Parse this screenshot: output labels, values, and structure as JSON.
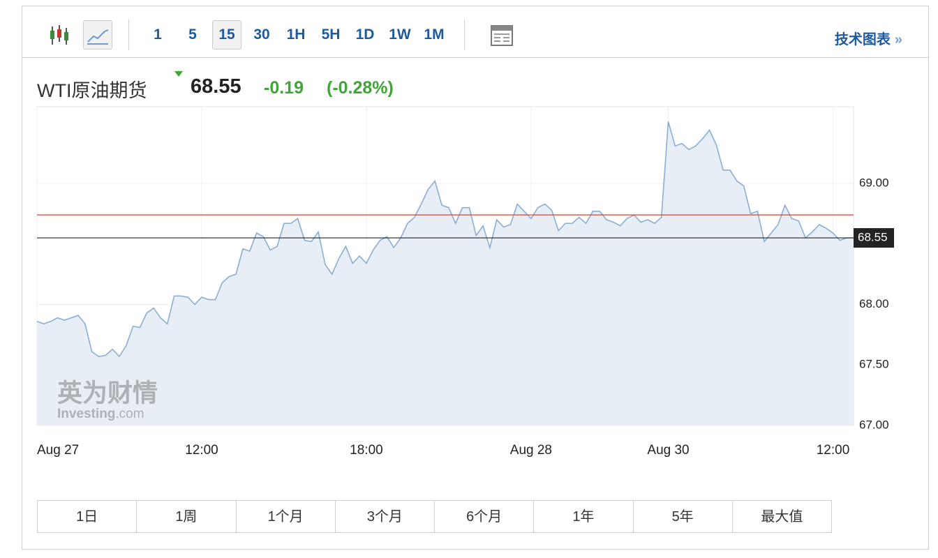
{
  "toolbar": {
    "intervals": [
      "1",
      "5",
      "15",
      "30",
      "1H",
      "5H",
      "1D",
      "1W",
      "1M"
    ],
    "selected_interval": 2,
    "link": "技术图表"
  },
  "quote": {
    "name": "WTI原油期货",
    "price": "68.55",
    "change": "-0.19",
    "change_pct": "(-0.28%)"
  },
  "watermark": {
    "brand": "英为财情",
    "site": "Investing",
    "suffix": ".com"
  },
  "ranges": [
    "1日",
    "1周",
    "1个月",
    "3个月",
    "6个月",
    "1年",
    "5年",
    "最大值"
  ],
  "chart_data": {
    "type": "area",
    "categories": [
      "Aug 27",
      null,
      null,
      null,
      null,
      null,
      null,
      null,
      null,
      null,
      null,
      null,
      null,
      null,
      null,
      null,
      null,
      null,
      null,
      null,
      null,
      null,
      null,
      null,
      "12:00",
      null,
      null,
      null,
      null,
      null,
      null,
      null,
      null,
      null,
      null,
      null,
      null,
      null,
      null,
      null,
      null,
      null,
      null,
      null,
      null,
      null,
      null,
      null,
      "18:00",
      null,
      null,
      null,
      null,
      null,
      null,
      null,
      null,
      null,
      null,
      null,
      null,
      null,
      null,
      null,
      null,
      null,
      null,
      null,
      null,
      null,
      null,
      null,
      "Aug 28",
      null,
      null,
      null,
      null,
      null,
      null,
      null,
      null,
      null,
      null,
      null,
      null,
      null,
      null,
      null,
      null,
      null,
      null,
      null,
      "Aug 30",
      null,
      null,
      null,
      null,
      null,
      null,
      null,
      null,
      null,
      null,
      null,
      null,
      null,
      null,
      null,
      null,
      null,
      null,
      null,
      null,
      null,
      null,
      null,
      "12:00",
      null,
      null,
      null
    ],
    "values": [
      67.86,
      67.84,
      67.86,
      67.89,
      67.87,
      67.89,
      67.91,
      67.84,
      67.61,
      67.57,
      67.58,
      67.63,
      67.57,
      67.66,
      67.82,
      67.81,
      67.93,
      67.97,
      67.89,
      67.84,
      68.07,
      68.07,
      68.06,
      68.0,
      68.06,
      68.04,
      68.04,
      68.18,
      68.23,
      68.25,
      68.46,
      68.44,
      68.59,
      68.56,
      68.45,
      68.48,
      68.67,
      68.67,
      68.71,
      68.53,
      68.52,
      68.6,
      68.33,
      68.25,
      68.38,
      68.48,
      68.34,
      68.4,
      68.34,
      68.45,
      68.53,
      68.56,
      68.47,
      68.55,
      68.67,
      68.72,
      68.83,
      68.95,
      69.02,
      68.82,
      68.8,
      68.67,
      68.8,
      68.8,
      68.57,
      68.65,
      68.47,
      68.7,
      68.64,
      68.66,
      68.83,
      68.77,
      68.71,
      68.8,
      68.83,
      68.78,
      68.61,
      68.67,
      68.67,
      68.72,
      68.67,
      68.77,
      68.77,
      68.7,
      68.68,
      68.65,
      68.71,
      68.74,
      68.68,
      68.7,
      68.67,
      68.72,
      69.51,
      69.31,
      69.33,
      69.28,
      69.31,
      69.37,
      69.44,
      69.32,
      69.11,
      69.11,
      69.02,
      68.98,
      68.75,
      68.77,
      68.52,
      68.59,
      68.66,
      68.82,
      68.71,
      68.69,
      68.55,
      68.6,
      68.66,
      68.63,
      68.59,
      68.53,
      68.55,
      68.55
    ],
    "color": "#8aaed4",
    "fill": "#e8eef6",
    "ylim": [
      67,
      69.634
    ],
    "yticks": [
      {
        "value": 67,
        "label": "67.00"
      },
      {
        "value": 67.5,
        "label": "67.50"
      },
      {
        "value": 68,
        "label": "68.00"
      },
      {
        "value": 69,
        "label": "69.00"
      }
    ],
    "grid": true,
    "reference_line": 68.74,
    "reference_color": "#d0463c",
    "price_line": 68.55,
    "price_color": "#222222"
  }
}
